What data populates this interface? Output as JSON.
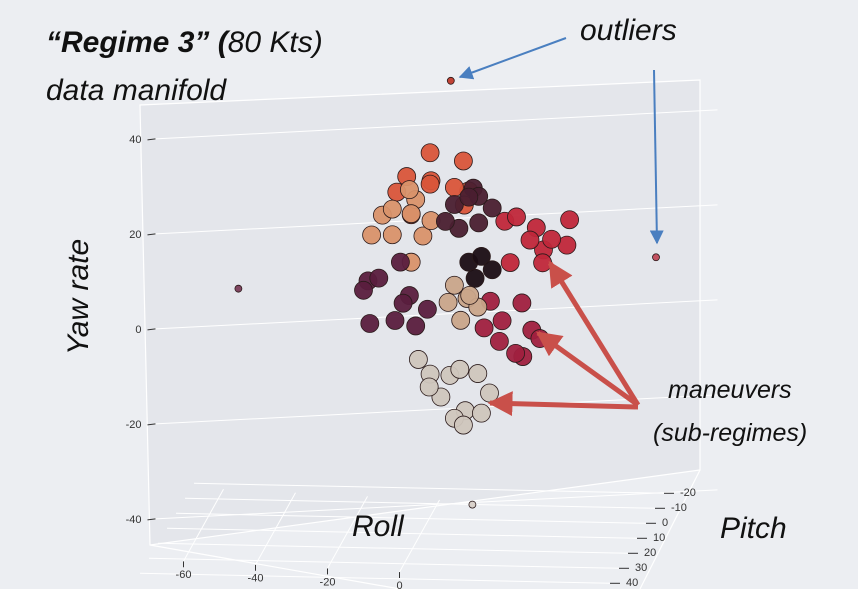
{
  "chart_data": {
    "type": "scatter3d",
    "title_bold": "“Regime 3” (",
    "title_rest": "80 Kts)",
    "subtitle": "data manifold",
    "zlabel": "Yaw rate",
    "xlabel": "Roll",
    "ylabel": "Pitch",
    "annotations": [
      "outliers",
      "maneuvers",
      "(sub-regimes)"
    ],
    "xlim": [
      -70,
      60
    ],
    "ylim": [
      -25,
      45
    ],
    "zlim": [
      -50,
      50
    ],
    "xticks": [
      -60,
      -40,
      -20,
      0
    ],
    "yticks": [
      -20,
      -10,
      0,
      10,
      20,
      30,
      40
    ],
    "zticks": [
      -40,
      -20,
      0,
      20,
      40
    ],
    "series": [
      {
        "color": "#d9553a",
        "roll": [
          -12,
          -8,
          -4,
          0,
          4,
          8,
          -6,
          2,
          -2,
          6
        ],
        "pitch": [
          0,
          5,
          -5,
          10,
          -10,
          0,
          8,
          -8,
          3,
          -3
        ],
        "yaw": [
          17,
          22,
          24,
          23,
          21,
          18,
          15,
          16,
          20,
          14
        ]
      },
      {
        "color": "#d9926a",
        "roll": [
          -16,
          -12,
          -8,
          -4,
          -14,
          -6,
          -10,
          -2,
          -18,
          -9
        ],
        "pitch": [
          0,
          5,
          -5,
          3,
          -3,
          8,
          -8,
          2,
          4,
          -2
        ],
        "yaw": [
          12,
          15,
          14,
          9,
          7,
          5,
          10,
          12,
          9,
          17
        ]
      },
      {
        "color": "#4a1f30",
        "roll": [
          4,
          8,
          12,
          6,
          10,
          2,
          14,
          9
        ],
        "pitch": [
          0,
          -5,
          5,
          3,
          -3,
          2,
          -2,
          4
        ],
        "yaw": [
          15,
          17,
          13,
          11,
          16,
          12,
          14,
          18
        ]
      },
      {
        "color": "#c0273a",
        "roll": [
          18,
          22,
          26,
          30,
          34,
          20,
          28,
          32,
          24,
          36
        ],
        "pitch": [
          0,
          3,
          -3,
          5,
          -5,
          2,
          -2,
          4,
          -4,
          0
        ],
        "yaw": [
          12,
          14,
          10,
          8,
          6,
          4,
          3,
          10,
          7,
          13
        ]
      },
      {
        "color": "#1a0d14",
        "roll": [
          8,
          12,
          14,
          10
        ],
        "pitch": [
          0,
          2,
          -2,
          1
        ],
        "yaw": [
          3,
          5,
          1,
          0
        ]
      },
      {
        "color": "#5a1e3e",
        "roll": [
          -20,
          -16,
          -12,
          -8,
          -4,
          -18,
          -14,
          -6,
          -22,
          -10
        ],
        "pitch": [
          0,
          4,
          -4,
          2,
          -2,
          6,
          -6,
          3,
          -3,
          1
        ],
        "yaw": [
          -2,
          0,
          1,
          -4,
          -8,
          -9,
          -12,
          -10,
          -5,
          -6
        ]
      },
      {
        "color": "#a0203f",
        "roll": [
          14,
          18,
          22,
          26,
          16,
          24,
          20,
          28,
          12
        ],
        "pitch": [
          0,
          3,
          -3,
          2,
          -2,
          4,
          -4,
          1,
          -1
        ],
        "yaw": [
          -5,
          -8,
          -6,
          -10,
          -14,
          -15,
          -17,
          -12,
          -11
        ]
      },
      {
        "color": "#c9a58a",
        "roll": [
          4,
          8,
          10,
          6,
          2,
          9
        ],
        "pitch": [
          0,
          2,
          -2,
          1,
          -1,
          3
        ],
        "yaw": [
          -2,
          -4,
          -7,
          -9,
          -6,
          -3
        ]
      },
      {
        "color": "#cfc6bd",
        "roll": [
          -6,
          -2,
          2,
          6,
          10,
          14,
          0,
          8,
          -4,
          4,
          12,
          6
        ],
        "pitch": [
          0,
          3,
          -3,
          2,
          -2,
          1,
          -1,
          4,
          -4,
          0,
          2,
          -2
        ],
        "yaw": [
          -18,
          -20,
          -22,
          -19,
          -21,
          -24,
          -26,
          -27,
          -25,
          -30,
          -28,
          -32
        ]
      },
      {
        "colors": [
          "#c0392b",
          "#c04a5a",
          "#7a3d5a",
          "#d8d0c8"
        ],
        "roll": [
          3,
          55,
          -56,
          9
        ],
        "pitch": [
          0,
          -20,
          0,
          0
        ],
        "yaw": [
          41,
          -0.5,
          -5,
          -48
        ]
      }
    ]
  }
}
